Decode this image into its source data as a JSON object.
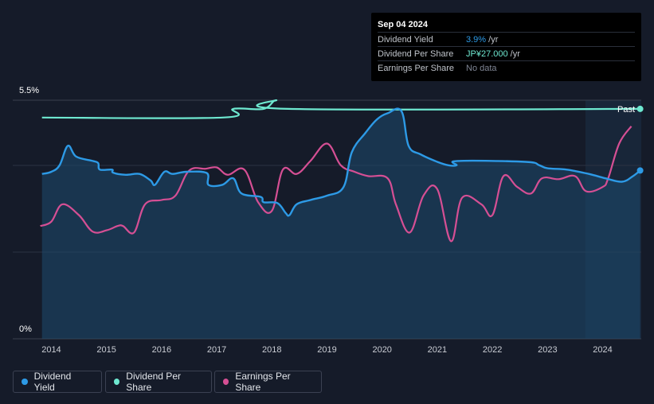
{
  "tooltip": {
    "date": "Sep 04 2024",
    "rows": [
      {
        "label": "Dividend Yield",
        "value": "3.9%",
        "unit": " /yr",
        "color": "#2d9ae6"
      },
      {
        "label": "Dividend Per Share",
        "value": "JP¥27.000",
        "unit": " /yr",
        "color": "#6ee8d0"
      },
      {
        "label": "Earnings Per Share",
        "value": "No data",
        "unit": "",
        "color": "#7f8594"
      }
    ]
  },
  "past_label": "Past",
  "legend": [
    {
      "label": "Dividend Yield",
      "color": "#2d9ae6"
    },
    {
      "label": "Dividend Per Share",
      "color": "#6ee8d0"
    },
    {
      "label": "Earnings Per Share",
      "color": "#d54f94"
    }
  ],
  "chart_data": {
    "type": "line",
    "title": "",
    "xlabel": "",
    "ylabel": "",
    "x_ticks": [
      "2014",
      "2015",
      "2016",
      "2017",
      "2018",
      "2019",
      "2020",
      "2021",
      "2022",
      "2023",
      "2024"
    ],
    "y_tick_labels": [
      "5.5%",
      "0%"
    ],
    "xlim": [
      2013.3,
      2024.7
    ],
    "ylim": [
      0,
      5.5
    ],
    "series": [
      {
        "name": "Dividend Yield",
        "color": "#2d9ae6",
        "unit": "%",
        "points": [
          [
            2013.83,
            3.8
          ],
          [
            2014.0,
            3.85
          ],
          [
            2014.15,
            4.0
          ],
          [
            2014.3,
            4.45
          ],
          [
            2014.45,
            4.2
          ],
          [
            2014.75,
            4.1
          ],
          [
            2014.85,
            4.05
          ],
          [
            2014.88,
            3.9
          ],
          [
            2015.1,
            3.9
          ],
          [
            2015.12,
            3.83
          ],
          [
            2015.35,
            3.78
          ],
          [
            2015.6,
            3.8
          ],
          [
            2015.8,
            3.65
          ],
          [
            2015.88,
            3.55
          ],
          [
            2016.05,
            3.85
          ],
          [
            2016.2,
            3.8
          ],
          [
            2016.45,
            3.85
          ],
          [
            2016.82,
            3.82
          ],
          [
            2016.85,
            3.55
          ],
          [
            2017.1,
            3.55
          ],
          [
            2017.3,
            3.7
          ],
          [
            2017.45,
            3.35
          ],
          [
            2017.8,
            3.27
          ],
          [
            2017.85,
            3.15
          ],
          [
            2018.1,
            3.13
          ],
          [
            2018.25,
            2.9
          ],
          [
            2018.32,
            2.85
          ],
          [
            2018.45,
            3.1
          ],
          [
            2018.7,
            3.2
          ],
          [
            2019.0,
            3.3
          ],
          [
            2019.3,
            3.5
          ],
          [
            2019.45,
            4.3
          ],
          [
            2019.7,
            4.75
          ],
          [
            2019.9,
            5.05
          ],
          [
            2020.1,
            5.2
          ],
          [
            2020.35,
            5.25
          ],
          [
            2020.48,
            4.45
          ],
          [
            2020.7,
            4.25
          ],
          [
            2021.0,
            4.08
          ],
          [
            2021.2,
            4.0
          ],
          [
            2021.35,
            4.0
          ],
          [
            2021.37,
            4.1
          ],
          [
            2022.6,
            4.08
          ],
          [
            2022.85,
            4.0
          ],
          [
            2023.0,
            3.93
          ],
          [
            2023.35,
            3.9
          ],
          [
            2023.75,
            3.8
          ],
          [
            2024.05,
            3.7
          ],
          [
            2024.35,
            3.62
          ],
          [
            2024.55,
            3.75
          ],
          [
            2024.68,
            3.88
          ]
        ]
      },
      {
        "name": "Dividend Per Share",
        "color": "#6ee8d0",
        "unit": "JP¥",
        "points": [
          [
            2013.83,
            5.1
          ],
          [
            2017.1,
            5.1
          ],
          [
            2017.3,
            5.3
          ],
          [
            2017.85,
            5.3
          ],
          [
            2018.08,
            5.5
          ],
          [
            2018.3,
            5.3
          ],
          [
            2024.68,
            5.3
          ]
        ]
      },
      {
        "name": "Earnings Per Share",
        "color": "#d54f94",
        "unit": "JP¥",
        "points": [
          [
            2013.8,
            2.6
          ],
          [
            2014.0,
            2.7
          ],
          [
            2014.2,
            3.1
          ],
          [
            2014.5,
            2.85
          ],
          [
            2014.75,
            2.47
          ],
          [
            2015.0,
            2.5
          ],
          [
            2015.2,
            2.6
          ],
          [
            2015.3,
            2.6
          ],
          [
            2015.5,
            2.45
          ],
          [
            2015.7,
            3.1
          ],
          [
            2016.0,
            3.2
          ],
          [
            2016.25,
            3.3
          ],
          [
            2016.5,
            3.88
          ],
          [
            2016.8,
            3.92
          ],
          [
            2017.0,
            3.95
          ],
          [
            2017.2,
            3.78
          ],
          [
            2017.5,
            3.9
          ],
          [
            2017.75,
            3.15
          ],
          [
            2018.0,
            2.95
          ],
          [
            2018.2,
            3.9
          ],
          [
            2018.45,
            3.8
          ],
          [
            2018.7,
            4.1
          ],
          [
            2019.0,
            4.5
          ],
          [
            2019.25,
            4.0
          ],
          [
            2019.5,
            3.85
          ],
          [
            2019.75,
            3.75
          ],
          [
            2020.1,
            3.7
          ],
          [
            2020.25,
            3.1
          ],
          [
            2020.5,
            2.45
          ],
          [
            2020.75,
            3.3
          ],
          [
            2021.0,
            3.45
          ],
          [
            2021.25,
            2.25
          ],
          [
            2021.45,
            3.25
          ],
          [
            2021.8,
            3.1
          ],
          [
            2022.0,
            2.85
          ],
          [
            2022.2,
            3.75
          ],
          [
            2022.45,
            3.5
          ],
          [
            2022.7,
            3.35
          ],
          [
            2022.9,
            3.7
          ],
          [
            2023.2,
            3.68
          ],
          [
            2023.5,
            3.75
          ],
          [
            2023.7,
            3.4
          ],
          [
            2024.0,
            3.5
          ],
          [
            2024.1,
            3.7
          ],
          [
            2024.3,
            4.5
          ],
          [
            2024.52,
            4.9
          ]
        ]
      }
    ]
  }
}
